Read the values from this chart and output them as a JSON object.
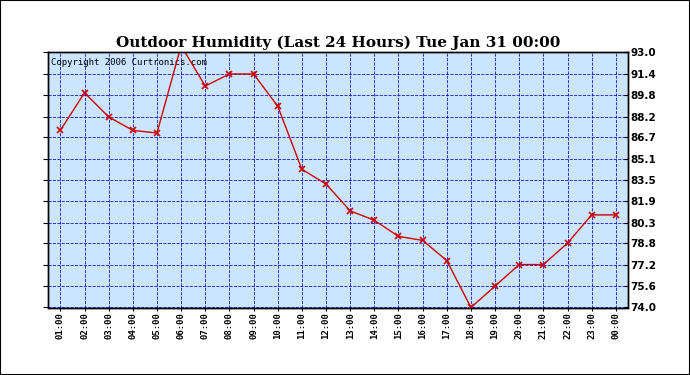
{
  "title": "Outdoor Humidity (Last 24 Hours) Tue Jan 31 00:00",
  "copyright": "Copyright 2006 Curtronics.com",
  "x_labels": [
    "01:00",
    "02:00",
    "03:00",
    "04:00",
    "05:00",
    "06:00",
    "07:00",
    "08:00",
    "09:00",
    "10:00",
    "11:00",
    "12:00",
    "13:00",
    "14:00",
    "15:00",
    "16:00",
    "17:00",
    "18:00",
    "19:00",
    "20:00",
    "21:00",
    "22:00",
    "23:00",
    "00:00"
  ],
  "data_x": [
    0,
    1,
    2,
    3,
    4,
    5,
    6,
    7,
    8,
    9,
    10,
    11,
    12,
    13,
    14,
    15,
    16,
    17,
    18,
    19,
    20,
    21,
    22,
    23
  ],
  "data_y": [
    87.2,
    90.0,
    88.2,
    87.2,
    87.0,
    93.5,
    90.5,
    91.4,
    91.4,
    89.0,
    84.3,
    83.2,
    81.2,
    80.5,
    79.3,
    79.0,
    77.5,
    74.0,
    75.6,
    77.2,
    77.2,
    78.8,
    80.9,
    80.9
  ],
  "yticks": [
    74.0,
    75.6,
    77.2,
    78.8,
    80.3,
    81.9,
    83.5,
    85.1,
    86.7,
    88.2,
    89.8,
    91.4,
    93.0
  ],
  "ymin": 74.0,
  "ymax": 93.0,
  "line_color": "#cc0000",
  "marker_color": "#cc0000",
  "bg_color": "#cce5ff",
  "grid_color": "#0000bb",
  "title_fontsize": 11,
  "copyright_fontsize": 6.5
}
